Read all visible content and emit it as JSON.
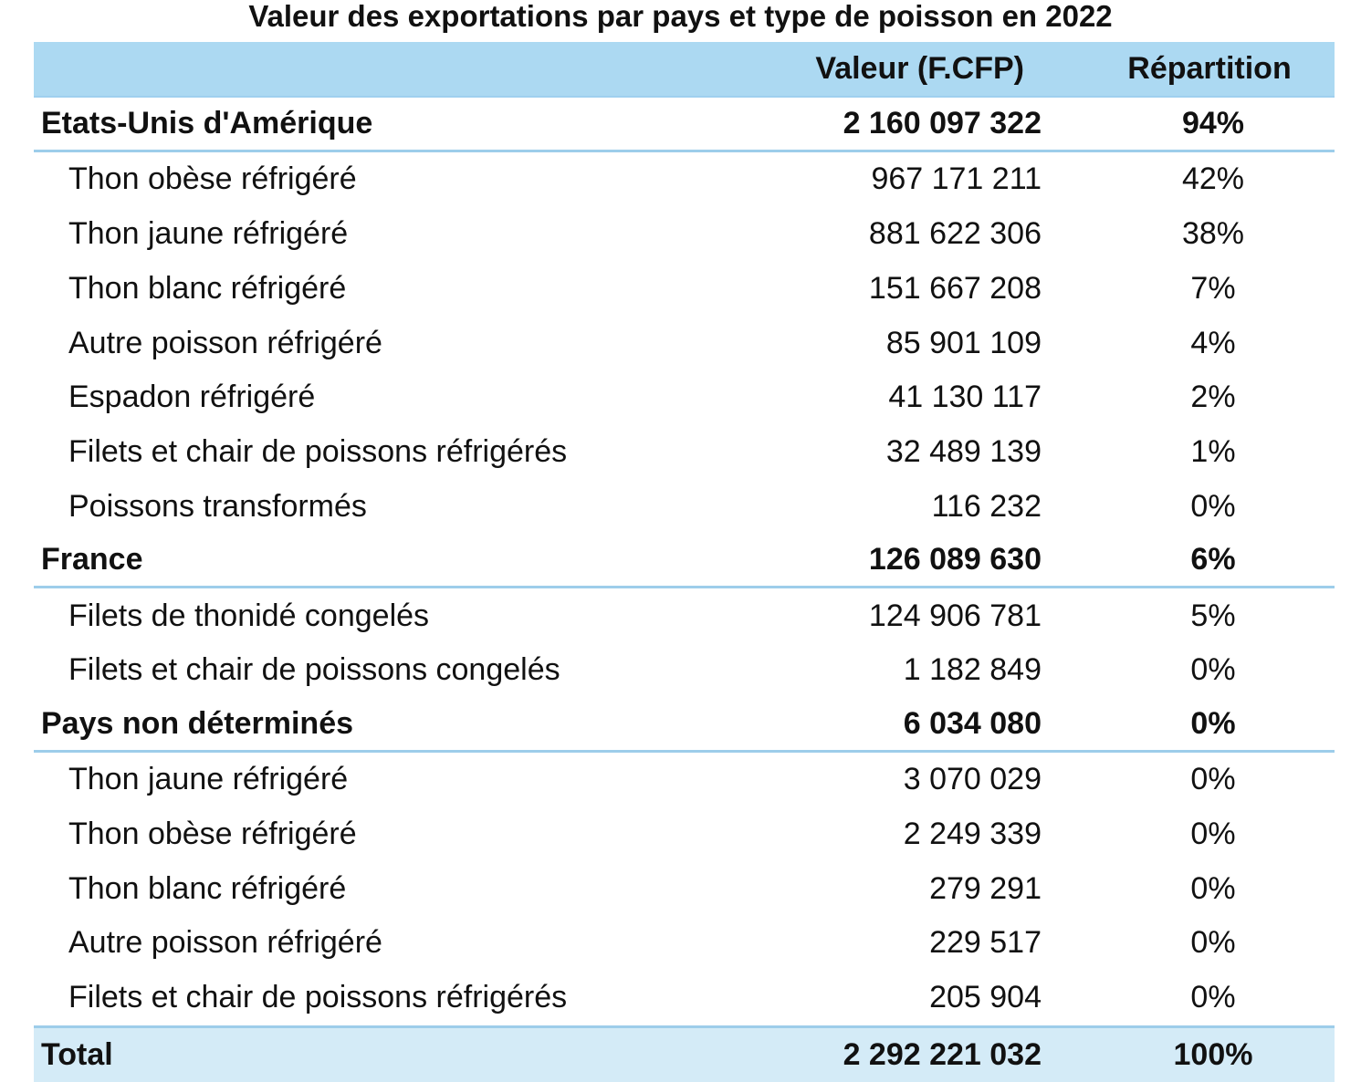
{
  "title": "Valeur des exportations par pays et type de poisson en 2022",
  "columns": {
    "value": "Valeur (F.CFP)",
    "share": "Répartition"
  },
  "rows": [
    {
      "label": "Etats-Unis d'Amérique",
      "value": "2 160 097 322",
      "share": "94%",
      "level": "country"
    },
    {
      "label": "Thon obèse réfrigéré",
      "value": "967 171 211",
      "share": "42%",
      "level": "sub"
    },
    {
      "label": "Thon jaune réfrigéré",
      "value": "881 622 306",
      "share": "38%",
      "level": "sub"
    },
    {
      "label": "Thon blanc réfrigéré",
      "value": "151 667 208",
      "share": "7%",
      "level": "sub"
    },
    {
      "label": "Autre poisson réfrigéré",
      "value": "85 901 109",
      "share": "4%",
      "level": "sub"
    },
    {
      "label": "Espadon réfrigéré",
      "value": "41 130 117",
      "share": "2%",
      "level": "sub"
    },
    {
      "label": "Filets et chair de poissons réfrigérés",
      "value": "32 489 139",
      "share": "1%",
      "level": "sub"
    },
    {
      "label": "Poissons transformés",
      "value": "116 232",
      "share": "0%",
      "level": "sub"
    },
    {
      "label": "France",
      "value": "126 089 630",
      "share": "6%",
      "level": "country"
    },
    {
      "label": "Filets de thonidé congelés",
      "value": "124 906 781",
      "share": "5%",
      "level": "sub"
    },
    {
      "label": "Filets et chair de poissons congelés",
      "value": "1 182 849",
      "share": "0%",
      "level": "sub"
    },
    {
      "label": "Pays non déterminés",
      "value": "6 034 080",
      "share": "0%",
      "level": "country"
    },
    {
      "label": "Thon jaune réfrigéré",
      "value": "3 070 029",
      "share": "0%",
      "level": "sub"
    },
    {
      "label": "Thon obèse réfrigéré",
      "value": "2 249 339",
      "share": "0%",
      "level": "sub"
    },
    {
      "label": "Thon blanc réfrigéré",
      "value": "279 291",
      "share": "0%",
      "level": "sub"
    },
    {
      "label": "Autre poisson réfrigéré",
      "value": "229 517",
      "share": "0%",
      "level": "sub"
    },
    {
      "label": "Filets et chair de poissons réfrigérés",
      "value": "205 904",
      "share": "0%",
      "level": "sub"
    }
  ],
  "total": {
    "label": "Total",
    "value": "2 292 221 032",
    "share": "100%"
  }
}
